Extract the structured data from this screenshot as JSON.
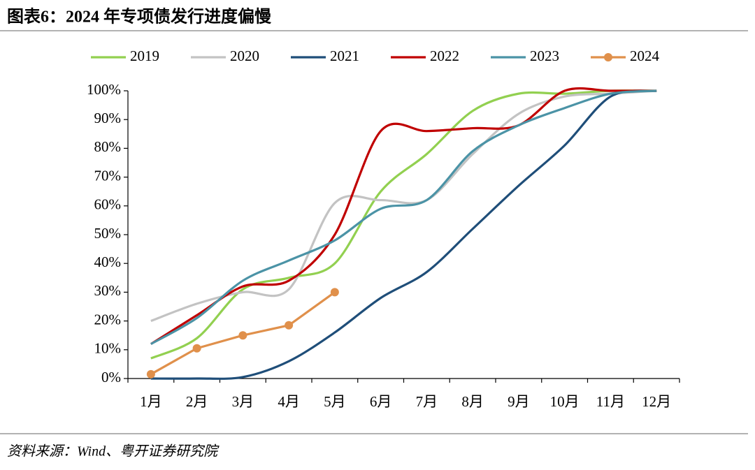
{
  "chart_data": {
    "type": "line",
    "title": "图表6：2024 年专项债发行进度偏慢",
    "source": "资料来源：Wind、粤开证券研究院",
    "categories": [
      "1月",
      "2月",
      "3月",
      "4月",
      "5月",
      "6月",
      "7月",
      "8月",
      "9月",
      "10月",
      "11月",
      "12月"
    ],
    "series": [
      {
        "name": "2019",
        "color": "#92d050",
        "values": [
          7,
          14,
          31,
          35,
          40,
          65,
          78,
          93,
          99,
          99,
          100,
          100
        ]
      },
      {
        "name": "2020",
        "color": "#c3c3c3",
        "values": [
          20,
          26,
          30,
          31,
          61,
          62,
          62,
          78,
          92,
          98,
          99,
          100
        ]
      },
      {
        "name": "2021",
        "color": "#1f4e79",
        "values": [
          0,
          0,
          0.5,
          6,
          16,
          28,
          37,
          52,
          67,
          81,
          98,
          100
        ]
      },
      {
        "name": "2022",
        "color": "#c00000",
        "values": [
          12,
          22,
          32,
          34,
          50,
          86,
          86,
          87,
          88,
          100,
          100,
          100
        ]
      },
      {
        "name": "2023",
        "color": "#4b93a6",
        "values": [
          12,
          21,
          34,
          41,
          48,
          59,
          62,
          79,
          88,
          94,
          99,
          100
        ]
      },
      {
        "name": "2024",
        "color": "#e0904b",
        "markers": true,
        "values": [
          1.5,
          10.5,
          15,
          18.5,
          30,
          null,
          null,
          null,
          null,
          null,
          null,
          null
        ]
      }
    ],
    "ylim": [
      0,
      100
    ],
    "yticks": [
      {
        "value": 0,
        "label": "0%"
      },
      {
        "value": 10,
        "label": "10%"
      },
      {
        "value": 20,
        "label": "20%"
      },
      {
        "value": 30,
        "label": "30%"
      },
      {
        "value": 40,
        "label": "40%"
      },
      {
        "value": 50,
        "label": "50%"
      },
      {
        "value": 60,
        "label": "60%"
      },
      {
        "value": 70,
        "label": "70%"
      },
      {
        "value": 80,
        "label": "80%"
      },
      {
        "value": 90,
        "label": "90%"
      },
      {
        "value": 100,
        "label": "100%"
      }
    ],
    "legend": "top"
  }
}
